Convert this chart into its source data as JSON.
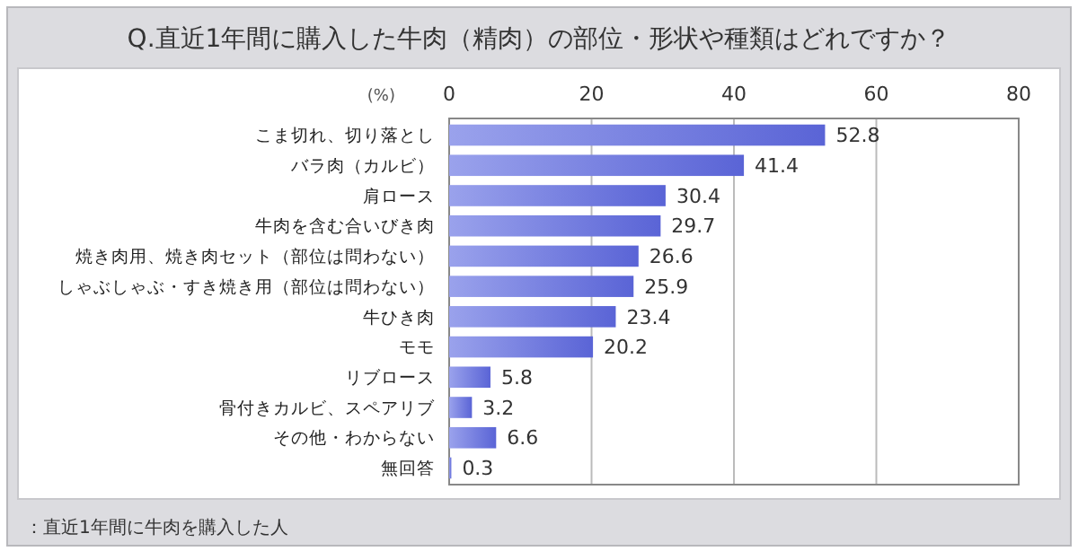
{
  "chart_data": {
    "type": "bar",
    "orientation": "horizontal",
    "title": "Q.直近1年間に購入した牛肉（精肉）の部位・形状や種類はどれですか？",
    "xlabel": "(%)",
    "categories": [
      "こま切れ、切り落とし",
      "バラ肉（カルビ）",
      "肩ロース",
      "牛肉を含む合いびき肉",
      "焼き肉用、焼き肉セット（部位は問わない）",
      "しゃぶしゃぶ・すき焼き用（部位は問わない）",
      "牛ひき肉",
      "モモ",
      "リブロース",
      "骨付きカルビ、スペアリブ",
      "その他・わからない",
      "無回答"
    ],
    "values": [
      52.8,
      41.4,
      30.4,
      29.7,
      26.6,
      25.9,
      23.4,
      20.2,
      5.8,
      3.2,
      6.6,
      0.3
    ],
    "color": "#5a64d6",
    "xlim": [
      0,
      80
    ],
    "xticks": [
      0,
      20,
      40,
      60,
      80
    ],
    "grid": "x",
    "data_labels": true,
    "annotations": [
      "：直近1年間に牛肉を購入した人"
    ]
  }
}
